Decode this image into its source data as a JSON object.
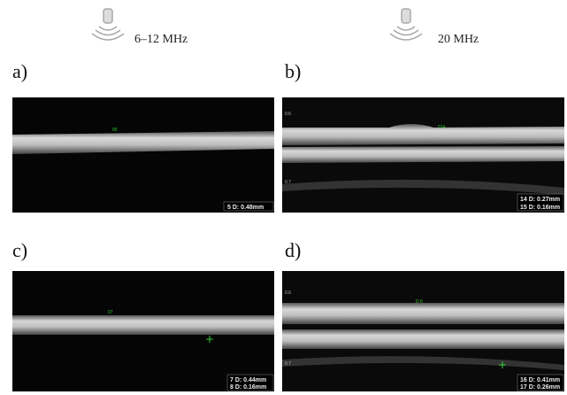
{
  "headers": [
    {
      "label": "6–12 MHz"
    },
    {
      "label": "20 MHz"
    }
  ],
  "panels": [
    {
      "label": "a)",
      "marker": "05",
      "measurements": [
        "5 D: 0.48mm"
      ]
    },
    {
      "label": "b)",
      "marker": "014",
      "depth_labels": [
        "0.6",
        "0.7"
      ],
      "measurements": [
        "14 D: 0.27mm",
        "15 D: 0.16mm"
      ]
    },
    {
      "label": "c)",
      "marker": "07",
      "measurements": [
        "7 D: 0.44mm",
        "8 D: 0.16mm"
      ]
    },
    {
      "label": "d)",
      "marker": "D 6",
      "depth_labels": [
        "0.6",
        "0.7"
      ],
      "measurements": [
        "16 D: 0.41mm",
        "17 D: 0.26mm"
      ]
    }
  ]
}
